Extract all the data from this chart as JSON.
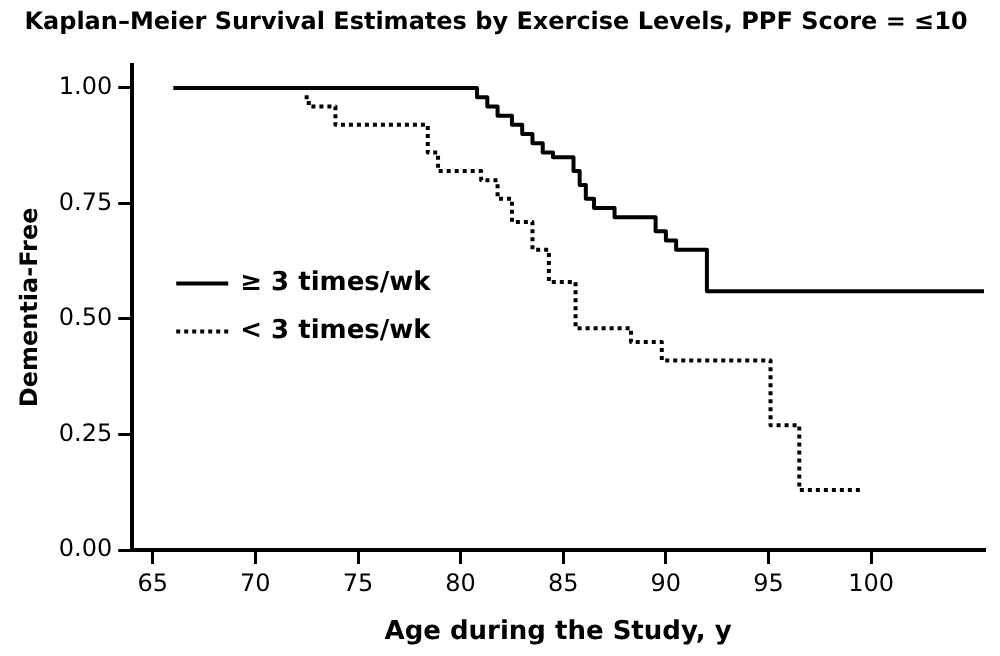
{
  "chart_data": {
    "type": "step",
    "title": "Kaplan–Meier Survival Estimates by Exercise Levels, PPF Score = ≤10",
    "xlabel": "Age during the Study, y",
    "ylabel": "Dementia-Free",
    "xlim": [
      64,
      105.5
    ],
    "xticks": [
      65,
      70,
      75,
      80,
      85,
      90,
      95,
      100
    ],
    "ylim": [
      0,
      1.05
    ],
    "yticks": [
      {
        "value": 0,
        "label": "0.00"
      },
      {
        "value": 0.25,
        "label": "0.25"
      },
      {
        "value": 0.5,
        "label": "0.50"
      },
      {
        "value": 0.75,
        "label": "0.75"
      },
      {
        "value": 1,
        "label": "1.00"
      }
    ],
    "grid": false,
    "legend": "center left",
    "marker": "none",
    "series": [
      {
        "name": "≥ 3 times/wk",
        "color": "#000000",
        "line_style": "solid",
        "x": [
          66,
          80.8,
          81.3,
          81.8,
          82.5,
          83,
          83.5,
          84,
          84.5,
          85.5,
          85.8,
          86.1,
          86.5,
          87.5,
          89.5,
          90,
          90.5,
          92,
          105.5
        ],
        "values": [
          1,
          0.98,
          0.96,
          0.94,
          0.92,
          0.9,
          0.88,
          0.86,
          0.85,
          0.82,
          0.79,
          0.76,
          0.74,
          0.72,
          0.69,
          0.67,
          0.65,
          0.56,
          0.56
        ]
      },
      {
        "name": "< 3 times/wk",
        "color": "#000000",
        "line_style": "dotted",
        "x": [
          72.4,
          72.6,
          73.9,
          78.4,
          78.9,
          79.5,
          81,
          81.8,
          82.5,
          83.5,
          84.3,
          85.6,
          88.3,
          89.8,
          95.1,
          96.5,
          99.6
        ],
        "values": [
          0.98,
          0.96,
          0.92,
          0.86,
          0.82,
          0.82,
          0.8,
          0.76,
          0.71,
          0.65,
          0.58,
          0.48,
          0.45,
          0.41,
          0.27,
          0.13,
          0.13
        ]
      }
    ]
  }
}
